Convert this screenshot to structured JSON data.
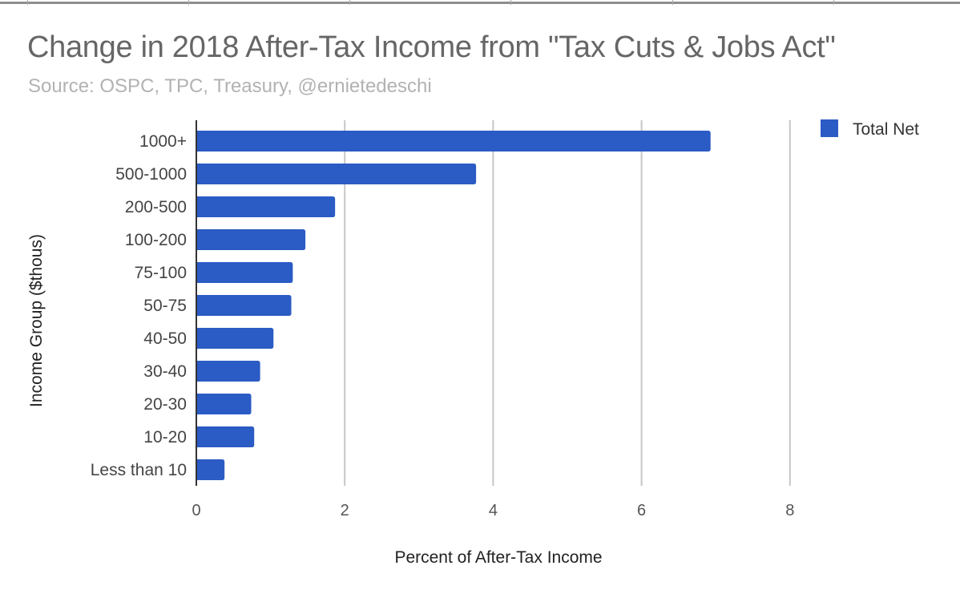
{
  "chart_data": {
    "type": "bar",
    "orientation": "horizontal",
    "title": "Change in 2018 After-Tax Income from \"Tax Cuts & Jobs Act\"",
    "subtitle": "Source: OSPC, TPC, Treasury, @ernietedeschi",
    "xlabel": "Percent of After-Tax Income",
    "ylabel": "Income Group ($thous)",
    "categories": [
      "1000+",
      "500-1000",
      "200-500",
      "100-200",
      "75-100",
      "50-75",
      "40-50",
      "30-40",
      "20-30",
      "10-20",
      "Less than 10"
    ],
    "series": [
      {
        "name": "Total Net",
        "color": "#2b5bc4",
        "values": [
          6.93,
          3.77,
          1.87,
          1.47,
          1.3,
          1.28,
          1.04,
          0.86,
          0.74,
          0.78,
          0.38
        ]
      }
    ],
    "xlim": [
      0,
      10
    ],
    "xticks": [
      "0",
      "2",
      "4",
      "6",
      "8"
    ],
    "grid": true,
    "legend": "top-right"
  }
}
